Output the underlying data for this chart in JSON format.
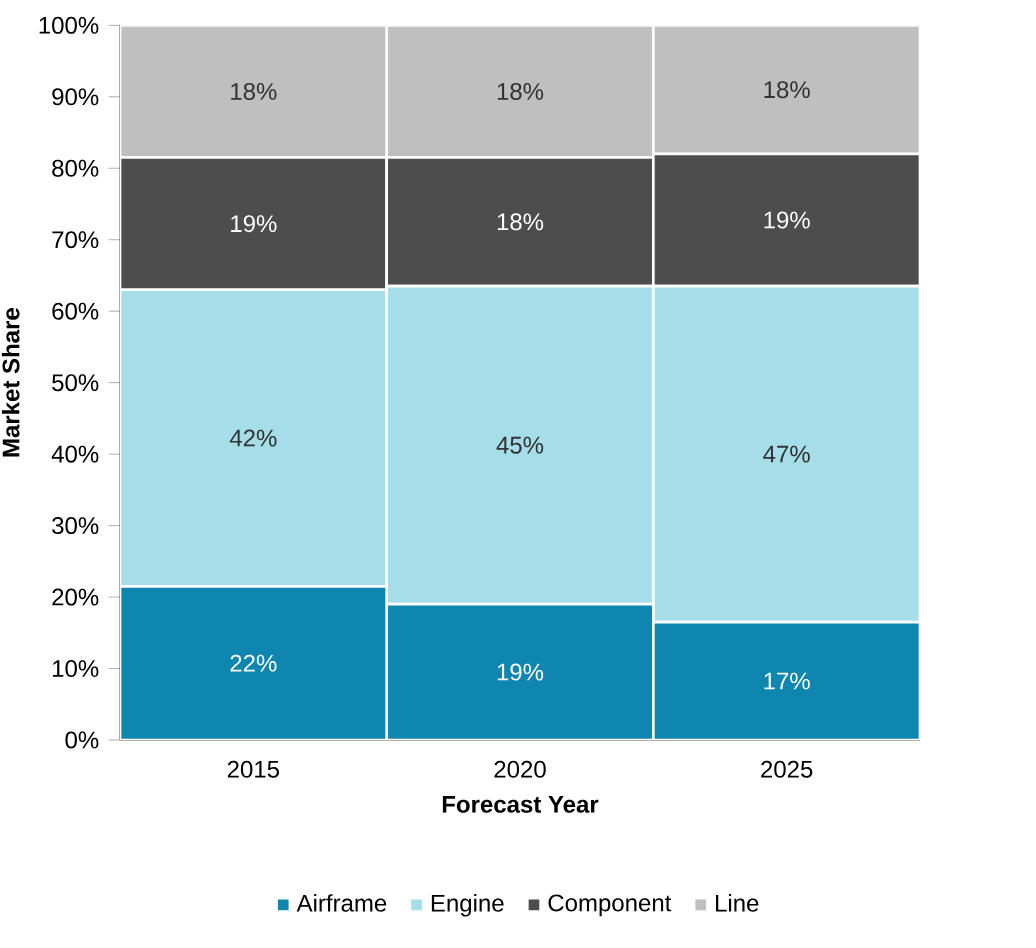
{
  "chart_data": {
    "type": "bar",
    "stacked": true,
    "xlabel": "Forecast Year",
    "ylabel": "Market Share",
    "categories": [
      "2015",
      "2020",
      "2025"
    ],
    "series": [
      {
        "name": "Airframe",
        "color": "#0e86b0",
        "values": [
          21.5,
          19,
          16.5
        ],
        "value_labels": [
          "22%",
          "19%",
          "17%"
        ]
      },
      {
        "name": "Engine",
        "color": "#a5dde9",
        "values": [
          41.5,
          44.5,
          47
        ],
        "value_labels": [
          "42%",
          "45%",
          "47%"
        ]
      },
      {
        "name": "Component",
        "color": "#4d4d4d",
        "values": [
          18.5,
          18,
          18.5
        ],
        "value_labels": [
          "19%",
          "18%",
          "19%"
        ]
      },
      {
        "name": "Line",
        "color": "#bfbfbf",
        "values": [
          18.5,
          18.5,
          18
        ],
        "value_labels": [
          "18%",
          "18%",
          "18%"
        ]
      }
    ],
    "ylim": [
      0,
      100
    ],
    "yticks": [
      {
        "value": 0,
        "label": "0%"
      },
      {
        "value": 10,
        "label": "10%"
      },
      {
        "value": 20,
        "label": "20%"
      },
      {
        "value": 30,
        "label": "30%"
      },
      {
        "value": 40,
        "label": "40%"
      },
      {
        "value": 50,
        "label": "50%"
      },
      {
        "value": 60,
        "label": "60%"
      },
      {
        "value": 70,
        "label": "70%"
      },
      {
        "value": 80,
        "label": "80%"
      },
      {
        "value": 90,
        "label": "90%"
      },
      {
        "value": 100,
        "label": "100%"
      }
    ],
    "grid": false,
    "legend": "bottom"
  }
}
